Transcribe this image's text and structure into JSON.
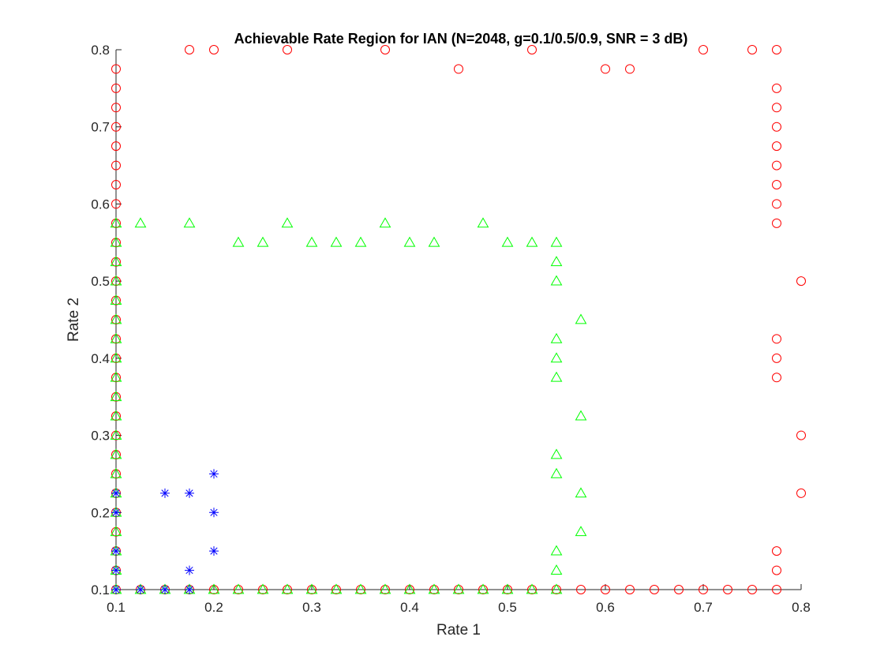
{
  "chart_data": {
    "type": "scatter",
    "title": "Achievable Rate Region for IAN (N=2048, g=0.1/0.5/0.9, SNR = 3 dB)",
    "xlabel": "Rate 1",
    "ylabel": "Rate 2",
    "xlim": [
      0.1,
      0.8
    ],
    "ylim": [
      0.1,
      0.8
    ],
    "xticks": [
      "0.1",
      "0.2",
      "0.3",
      "0.4",
      "0.5",
      "0.6",
      "0.7",
      "0.8"
    ],
    "yticks": [
      "0.1",
      "0.2",
      "0.3",
      "0.4",
      "0.5",
      "0.6",
      "0.7",
      "0.8"
    ],
    "grid": false,
    "legend": false,
    "series": [
      {
        "marker": "circle",
        "color": "#ff0000",
        "points": [
          [
            0.1,
            0.775
          ],
          [
            0.1,
            0.75
          ],
          [
            0.1,
            0.725
          ],
          [
            0.1,
            0.7
          ],
          [
            0.1,
            0.675
          ],
          [
            0.1,
            0.65
          ],
          [
            0.1,
            0.625
          ],
          [
            0.1,
            0.6
          ],
          [
            0.1,
            0.575
          ],
          [
            0.1,
            0.55
          ],
          [
            0.1,
            0.525
          ],
          [
            0.1,
            0.5
          ],
          [
            0.1,
            0.475
          ],
          [
            0.1,
            0.45
          ],
          [
            0.1,
            0.425
          ],
          [
            0.1,
            0.4
          ],
          [
            0.1,
            0.375
          ],
          [
            0.1,
            0.35
          ],
          [
            0.1,
            0.325
          ],
          [
            0.1,
            0.3
          ],
          [
            0.1,
            0.275
          ],
          [
            0.1,
            0.25
          ],
          [
            0.1,
            0.225
          ],
          [
            0.1,
            0.2
          ],
          [
            0.1,
            0.175
          ],
          [
            0.1,
            0.15
          ],
          [
            0.1,
            0.125
          ],
          [
            0.1,
            0.1
          ],
          [
            0.175,
            0.8
          ],
          [
            0.2,
            0.8
          ],
          [
            0.275,
            0.8
          ],
          [
            0.375,
            0.8
          ],
          [
            0.45,
            0.775
          ],
          [
            0.525,
            0.8
          ],
          [
            0.6,
            0.775
          ],
          [
            0.625,
            0.775
          ],
          [
            0.7,
            0.8
          ],
          [
            0.75,
            0.8
          ],
          [
            0.775,
            0.8
          ],
          [
            0.775,
            0.75
          ],
          [
            0.775,
            0.725
          ],
          [
            0.775,
            0.7
          ],
          [
            0.775,
            0.675
          ],
          [
            0.775,
            0.65
          ],
          [
            0.775,
            0.625
          ],
          [
            0.775,
            0.6
          ],
          [
            0.775,
            0.575
          ],
          [
            0.775,
            0.425
          ],
          [
            0.775,
            0.4
          ],
          [
            0.775,
            0.375
          ],
          [
            0.775,
            0.15
          ],
          [
            0.775,
            0.125
          ],
          [
            0.775,
            0.1
          ],
          [
            0.8,
            0.5
          ],
          [
            0.8,
            0.3
          ],
          [
            0.8,
            0.225
          ],
          [
            0.125,
            0.1
          ],
          [
            0.15,
            0.1
          ],
          [
            0.175,
            0.1
          ],
          [
            0.2,
            0.1
          ],
          [
            0.225,
            0.1
          ],
          [
            0.25,
            0.1
          ],
          [
            0.275,
            0.1
          ],
          [
            0.3,
            0.1
          ],
          [
            0.325,
            0.1
          ],
          [
            0.35,
            0.1
          ],
          [
            0.375,
            0.1
          ],
          [
            0.4,
            0.1
          ],
          [
            0.425,
            0.1
          ],
          [
            0.45,
            0.1
          ],
          [
            0.475,
            0.1
          ],
          [
            0.5,
            0.1
          ],
          [
            0.525,
            0.1
          ],
          [
            0.55,
            0.1
          ],
          [
            0.575,
            0.1
          ],
          [
            0.6,
            0.1
          ],
          [
            0.625,
            0.1
          ],
          [
            0.65,
            0.1
          ],
          [
            0.675,
            0.1
          ],
          [
            0.7,
            0.1
          ],
          [
            0.725,
            0.1
          ],
          [
            0.75,
            0.1
          ]
        ]
      },
      {
        "marker": "triangle",
        "color": "#00ff00",
        "points": [
          [
            0.1,
            0.575
          ],
          [
            0.1,
            0.55
          ],
          [
            0.1,
            0.525
          ],
          [
            0.1,
            0.5
          ],
          [
            0.1,
            0.475
          ],
          [
            0.1,
            0.45
          ],
          [
            0.1,
            0.425
          ],
          [
            0.1,
            0.4
          ],
          [
            0.1,
            0.375
          ],
          [
            0.1,
            0.35
          ],
          [
            0.1,
            0.325
          ],
          [
            0.1,
            0.3
          ],
          [
            0.1,
            0.275
          ],
          [
            0.1,
            0.25
          ],
          [
            0.1,
            0.225
          ],
          [
            0.1,
            0.2
          ],
          [
            0.1,
            0.175
          ],
          [
            0.1,
            0.15
          ],
          [
            0.1,
            0.125
          ],
          [
            0.1,
            0.1
          ],
          [
            0.125,
            0.575
          ],
          [
            0.175,
            0.575
          ],
          [
            0.225,
            0.55
          ],
          [
            0.25,
            0.55
          ],
          [
            0.275,
            0.575
          ],
          [
            0.3,
            0.55
          ],
          [
            0.325,
            0.55
          ],
          [
            0.35,
            0.55
          ],
          [
            0.375,
            0.575
          ],
          [
            0.4,
            0.55
          ],
          [
            0.425,
            0.55
          ],
          [
            0.475,
            0.575
          ],
          [
            0.5,
            0.55
          ],
          [
            0.525,
            0.55
          ],
          [
            0.55,
            0.55
          ],
          [
            0.55,
            0.525
          ],
          [
            0.55,
            0.5
          ],
          [
            0.55,
            0.425
          ],
          [
            0.55,
            0.4
          ],
          [
            0.55,
            0.375
          ],
          [
            0.55,
            0.275
          ],
          [
            0.55,
            0.25
          ],
          [
            0.55,
            0.15
          ],
          [
            0.55,
            0.125
          ],
          [
            0.55,
            0.1
          ],
          [
            0.575,
            0.45
          ],
          [
            0.575,
            0.325
          ],
          [
            0.575,
            0.225
          ],
          [
            0.575,
            0.175
          ],
          [
            0.125,
            0.1
          ],
          [
            0.15,
            0.1
          ],
          [
            0.175,
            0.1
          ],
          [
            0.2,
            0.1
          ],
          [
            0.225,
            0.1
          ],
          [
            0.25,
            0.1
          ],
          [
            0.275,
            0.1
          ],
          [
            0.3,
            0.1
          ],
          [
            0.325,
            0.1
          ],
          [
            0.35,
            0.1
          ],
          [
            0.375,
            0.1
          ],
          [
            0.4,
            0.1
          ],
          [
            0.425,
            0.1
          ],
          [
            0.45,
            0.1
          ],
          [
            0.475,
            0.1
          ],
          [
            0.5,
            0.1
          ],
          [
            0.525,
            0.1
          ]
        ]
      },
      {
        "marker": "asterisk",
        "color": "#0000ff",
        "points": [
          [
            0.1,
            0.225
          ],
          [
            0.1,
            0.2
          ],
          [
            0.1,
            0.15
          ],
          [
            0.1,
            0.125
          ],
          [
            0.1,
            0.1
          ],
          [
            0.125,
            0.1
          ],
          [
            0.15,
            0.1
          ],
          [
            0.175,
            0.1
          ],
          [
            0.15,
            0.225
          ],
          [
            0.175,
            0.225
          ],
          [
            0.175,
            0.125
          ],
          [
            0.2,
            0.25
          ],
          [
            0.2,
            0.2
          ],
          [
            0.2,
            0.15
          ]
        ]
      }
    ]
  }
}
